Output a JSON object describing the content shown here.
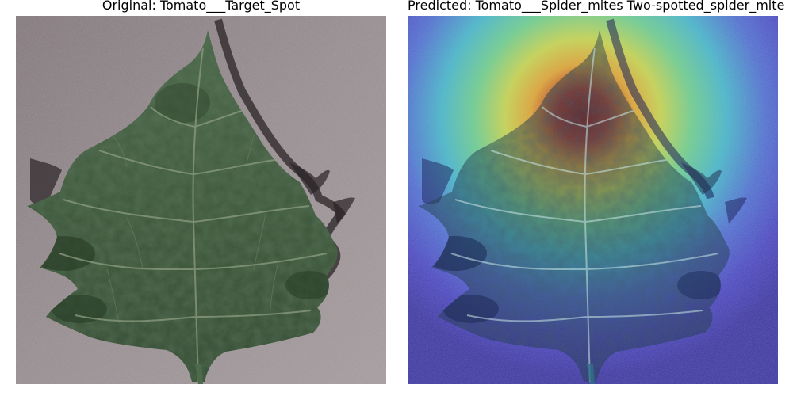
{
  "figure": {
    "original_title": "Original: Tomato___Target_Spot",
    "predicted_title": "Predicted: Tomato___Spider_mites Two-spotted_spider_mite"
  },
  "images": {
    "original": {
      "subject": "tomato-leaf",
      "colors": {
        "background": "#8e8487",
        "leaf": "#3f5a3c",
        "leaf_dark": "#2a3d2a",
        "vein": "#8a9a7c",
        "shadow": "#2a2426"
      }
    },
    "heatmap_overlay": {
      "subject": "grad-cam-heatmap",
      "colors": {
        "low": "#3a3aa8",
        "mid_low": "#3fb6c8",
        "mid": "#8fce5a",
        "mid_high": "#e5c83a",
        "high": "#9a1a10"
      }
    }
  }
}
